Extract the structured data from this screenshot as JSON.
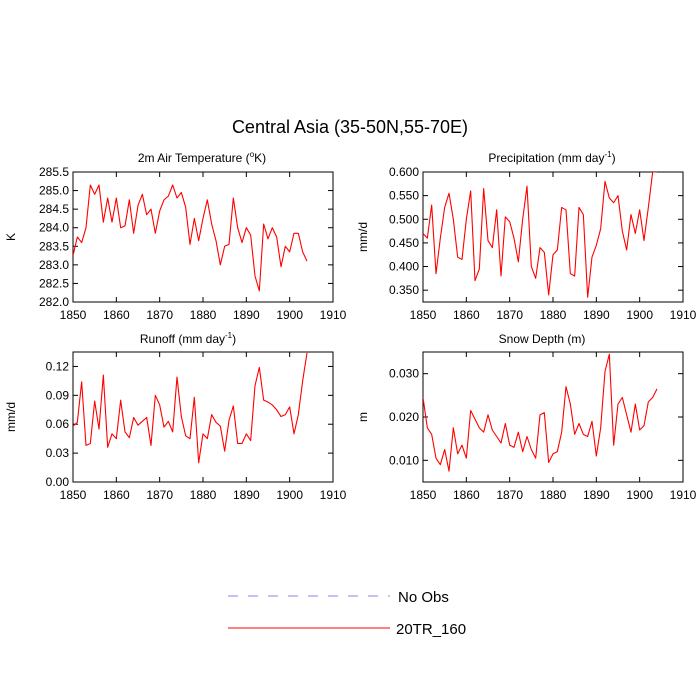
{
  "figure": {
    "title": "Central Asia (35-50N,55-70E)"
  },
  "legend": {
    "placement": "bottom-center",
    "items": [
      {
        "label": "No Obs",
        "color": "#8080ff",
        "style": "dashed"
      },
      {
        "label": "20TR_160",
        "color": "#ff0000",
        "style": "solid"
      }
    ]
  },
  "chart_data": [
    {
      "type": "line",
      "title_parts": [
        "2m Air Temperature (",
        "o",
        "K)"
      ],
      "ylabel": "K",
      "xlim": [
        1850,
        1910
      ],
      "ylim": [
        282.0,
        285.5
      ],
      "xticks": [
        1850,
        1860,
        1870,
        1880,
        1890,
        1900,
        1910
      ],
      "yticks": [
        "282.0",
        "282.5",
        "283.0",
        "283.5",
        "284.0",
        "284.5",
        "285.0",
        "285.5"
      ],
      "series": [
        {
          "name": "20TR_160",
          "color": "#ff0000",
          "x": [
            1850,
            1851,
            1852,
            1853,
            1854,
            1855,
            1856,
            1857,
            1858,
            1859,
            1860,
            1861,
            1862,
            1863,
            1864,
            1865,
            1866,
            1867,
            1868,
            1869,
            1870,
            1871,
            1872,
            1873,
            1874,
            1875,
            1876,
            1877,
            1878,
            1879,
            1880,
            1881,
            1882,
            1883,
            1884,
            1885,
            1886,
            1887,
            1888,
            1889,
            1890,
            1891,
            1892,
            1893,
            1894,
            1895,
            1896,
            1897,
            1898,
            1899,
            1900,
            1901,
            1902,
            1903,
            1904
          ],
          "y": [
            283.25,
            283.75,
            283.6,
            284.0,
            285.15,
            284.9,
            285.15,
            284.15,
            284.8,
            284.15,
            284.8,
            284.0,
            284.05,
            284.75,
            283.85,
            284.6,
            284.9,
            284.35,
            284.5,
            283.85,
            284.45,
            284.75,
            284.85,
            285.15,
            284.8,
            284.95,
            284.55,
            283.55,
            284.25,
            283.65,
            284.25,
            284.75,
            284.1,
            283.65,
            283.0,
            283.5,
            283.55,
            284.8,
            284.0,
            283.6,
            284.0,
            283.8,
            282.7,
            282.3,
            284.1,
            283.7,
            284.0,
            283.75,
            282.95,
            283.5,
            283.35,
            283.85,
            283.85,
            283.35,
            283.1
          ]
        }
      ]
    },
    {
      "type": "line",
      "title_parts": [
        "Precipitation (mm day",
        "-1",
        ")"
      ],
      "ylabel": "mm/d",
      "xlim": [
        1850,
        1910
      ],
      "ylim": [
        0.325,
        0.6
      ],
      "xticks": [
        1850,
        1860,
        1870,
        1880,
        1890,
        1900,
        1910
      ],
      "yticks": [
        "0.350",
        "0.400",
        "0.450",
        "0.500",
        "0.550",
        "0.600"
      ],
      "series": [
        {
          "name": "20TR_160",
          "color": "#ff0000",
          "x": [
            1850,
            1851,
            1852,
            1853,
            1854,
            1855,
            1856,
            1857,
            1858,
            1859,
            1860,
            1861,
            1862,
            1863,
            1864,
            1865,
            1866,
            1867,
            1868,
            1869,
            1870,
            1871,
            1872,
            1873,
            1874,
            1875,
            1876,
            1877,
            1878,
            1879,
            1880,
            1881,
            1882,
            1883,
            1884,
            1885,
            1886,
            1887,
            1888,
            1889,
            1890,
            1891,
            1892,
            1893,
            1894,
            1895,
            1896,
            1897,
            1898,
            1899,
            1900,
            1901,
            1902,
            1903,
            1904
          ],
          "y": [
            0.47,
            0.46,
            0.53,
            0.385,
            0.46,
            0.525,
            0.555,
            0.5,
            0.42,
            0.415,
            0.5,
            0.56,
            0.37,
            0.395,
            0.565,
            0.455,
            0.44,
            0.52,
            0.38,
            0.505,
            0.495,
            0.46,
            0.41,
            0.5,
            0.57,
            0.4,
            0.375,
            0.44,
            0.43,
            0.34,
            0.425,
            0.435,
            0.525,
            0.52,
            0.385,
            0.38,
            0.525,
            0.51,
            0.335,
            0.42,
            0.445,
            0.48,
            0.58,
            0.545,
            0.535,
            0.55,
            0.475,
            0.435,
            0.51,
            0.47,
            0.52,
            0.455,
            0.525,
            0.6,
            0.6
          ]
        }
      ]
    },
    {
      "type": "line",
      "title_parts": [
        "Runoff (mm day",
        "-1",
        ")"
      ],
      "ylabel": "mm/d",
      "xlim": [
        1850,
        1910
      ],
      "ylim": [
        0.0,
        0.135
      ],
      "xticks": [
        1850,
        1860,
        1870,
        1880,
        1890,
        1900,
        1910
      ],
      "yticks": [
        "0.00",
        "0.03",
        "0.06",
        "0.09",
        "0.12"
      ],
      "series": [
        {
          "name": "20TR_160",
          "color": "#ff0000",
          "x": [
            1850,
            1851,
            1852,
            1853,
            1854,
            1855,
            1856,
            1857,
            1858,
            1859,
            1860,
            1861,
            1862,
            1863,
            1864,
            1865,
            1866,
            1867,
            1868,
            1869,
            1870,
            1871,
            1872,
            1873,
            1874,
            1875,
            1876,
            1877,
            1878,
            1879,
            1880,
            1881,
            1882,
            1883,
            1884,
            1885,
            1886,
            1887,
            1888,
            1889,
            1890,
            1891,
            1892,
            1893,
            1894,
            1895,
            1896,
            1897,
            1898,
            1899,
            1900,
            1901,
            1902,
            1903,
            1904
          ],
          "y": [
            0.058,
            0.062,
            0.104,
            0.038,
            0.04,
            0.084,
            0.055,
            0.111,
            0.036,
            0.05,
            0.045,
            0.085,
            0.052,
            0.046,
            0.067,
            0.059,
            0.063,
            0.067,
            0.038,
            0.09,
            0.08,
            0.057,
            0.063,
            0.052,
            0.109,
            0.068,
            0.048,
            0.045,
            0.088,
            0.02,
            0.05,
            0.045,
            0.07,
            0.062,
            0.058,
            0.032,
            0.064,
            0.079,
            0.04,
            0.04,
            0.05,
            0.043,
            0.1,
            0.119,
            0.085,
            0.083,
            0.08,
            0.075,
            0.068,
            0.07,
            0.078,
            0.05,
            0.07,
            0.105,
            0.134
          ]
        }
      ]
    },
    {
      "type": "line",
      "title_parts": [
        "Snow Depth (m)"
      ],
      "ylabel": "m",
      "xlim": [
        1850,
        1910
      ],
      "ylim": [
        0.005,
        0.035
      ],
      "xticks": [
        1850,
        1860,
        1870,
        1880,
        1890,
        1900,
        1910
      ],
      "yticks": [
        "0.010",
        "0.020",
        "0.030"
      ],
      "series": [
        {
          "name": "20TR_160",
          "color": "#ff0000",
          "x": [
            1850,
            1851,
            1852,
            1853,
            1854,
            1855,
            1856,
            1857,
            1858,
            1859,
            1860,
            1861,
            1862,
            1863,
            1864,
            1865,
            1866,
            1867,
            1868,
            1869,
            1870,
            1871,
            1872,
            1873,
            1874,
            1875,
            1876,
            1877,
            1878,
            1879,
            1880,
            1881,
            1882,
            1883,
            1884,
            1885,
            1886,
            1887,
            1888,
            1889,
            1890,
            1891,
            1892,
            1893,
            1894,
            1895,
            1896,
            1897,
            1898,
            1899,
            1900,
            1901,
            1902,
            1903,
            1904
          ],
          "y": [
            0.0245,
            0.0175,
            0.016,
            0.0105,
            0.009,
            0.0125,
            0.0075,
            0.0175,
            0.0115,
            0.0135,
            0.0105,
            0.0215,
            0.0195,
            0.0175,
            0.0165,
            0.0205,
            0.017,
            0.0155,
            0.014,
            0.0185,
            0.0135,
            0.013,
            0.0165,
            0.012,
            0.0155,
            0.0125,
            0.0105,
            0.0205,
            0.021,
            0.0095,
            0.0115,
            0.012,
            0.0165,
            0.027,
            0.023,
            0.016,
            0.0185,
            0.016,
            0.0155,
            0.019,
            0.011,
            0.0175,
            0.0305,
            0.0345,
            0.0135,
            0.023,
            0.0245,
            0.0205,
            0.0165,
            0.023,
            0.017,
            0.018,
            0.0235,
            0.0245,
            0.0265
          ]
        }
      ]
    }
  ]
}
